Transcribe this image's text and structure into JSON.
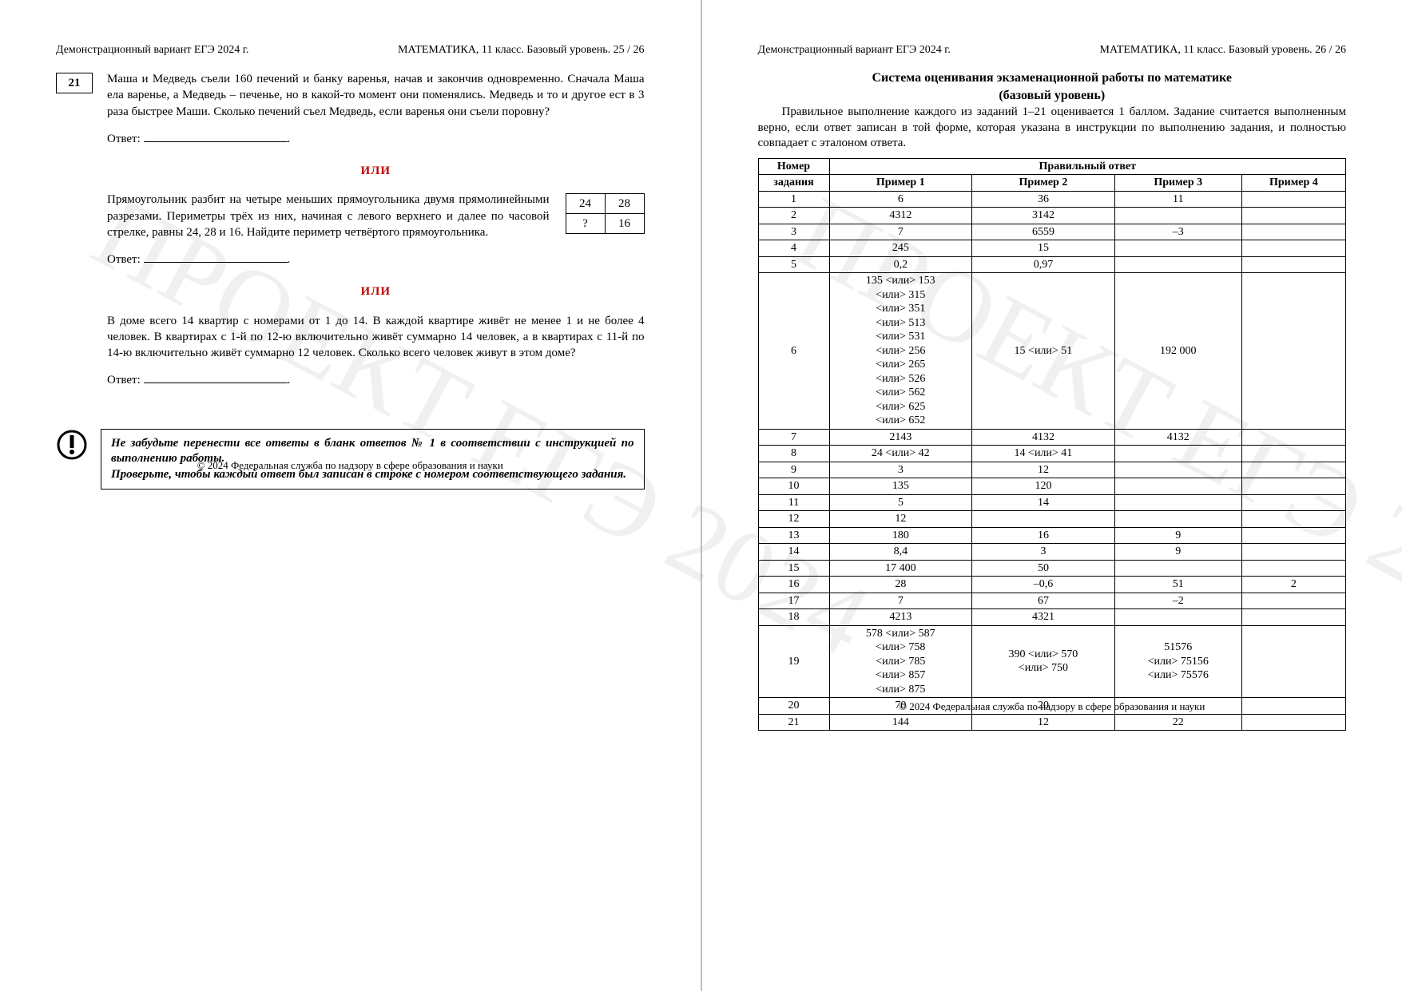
{
  "watermark_text": "ПРОЕКТ ЕГЭ 2024",
  "footer": "© 2024 Федеральная служба по надзору в сфере образования и науки",
  "left": {
    "head_left": "Демонстрационный вариант ЕГЭ 2024 г.",
    "head_right": "МАТЕМАТИКА, 11 класс. Базовый уровень. 25 / 26",
    "task_number": "21",
    "task1_text": "Маша и Медведь съели 160 печений и банку варенья, начав и закончив одновременно. Сначала Маша ела варенье, а Медведь – печенье, но в какой-то момент они поменялись. Медведь и то и другое ест в 3 раза быстрее Маши. Сколько печений съел Медведь, если варенья они съели поровну?",
    "answer_label": "Ответ:",
    "or_label": "ИЛИ",
    "task2_text": "Прямоугольник разбит на четыре меньших прямоугольника двумя прямолинейными разрезами. Периметры трёх из них, начиная с левого верхнего и далее по часовой стрелке, равны 24, 28 и 16. Найдите периметр четвёртого прямоугольника.",
    "mini_table": {
      "r1c1": "24",
      "r1c2": "28",
      "r2c1": "?",
      "r2c2": "16"
    },
    "task3_text": "В доме всего 14 квартир с номерами от 1 до 14. В каждой квартире живёт не менее 1 и не более 4 человек. В квартирах с 1-й по 12-ю включительно живёт суммарно 14 человек, а в квартирах с 11-й по 14-ю включительно живёт суммарно 12 человек. Сколько всего человек живут в этом доме?",
    "reminder_l1": "Не забудьте перенести все ответы в бланк ответов № 1 в соответствии с инструкцией по выполнению работы.",
    "reminder_l2": "Проверьте, чтобы каждый ответ был записан в строке с номером соответствующего задания."
  },
  "right": {
    "head_left": "Демонстрационный вариант ЕГЭ 2024 г.",
    "head_right": "МАТЕМАТИКА, 11 класс. Базовый уровень. 26 / 26",
    "title_l1": "Система оценивания экзаменационной работы по математике",
    "title_l2": "(базовый уровень)",
    "intro": "Правильное выполнение каждого из заданий 1–21 оценивается 1 баллом. Задание считается выполненным верно, если ответ записан в той форме, которая указана в инструкции по выполнению задания, и полностью совпадает с эталоном ответа.",
    "col_num_l1": "Номер",
    "col_num_l2": "задания",
    "col_answer": "Правильный ответ",
    "sub_cols": [
      "Пример 1",
      "Пример 2",
      "Пример 3",
      "Пример 4"
    ],
    "rows": [
      {
        "n": "1",
        "c": [
          "6",
          "36",
          "11",
          ""
        ]
      },
      {
        "n": "2",
        "c": [
          "4312",
          "3142",
          "",
          ""
        ]
      },
      {
        "n": "3",
        "c": [
          "7",
          "6559",
          "–3",
          ""
        ]
      },
      {
        "n": "4",
        "c": [
          "245",
          "15",
          "",
          ""
        ]
      },
      {
        "n": "5",
        "c": [
          "0,2",
          "0,97",
          "",
          ""
        ]
      },
      {
        "n": "6",
        "c": [
          "135 <или> 153\n<или> 315\n<или> 351\n<или> 513\n<или> 531\n<или> 256\n<или> 265\n<или> 526\n<или> 562\n<или> 625\n<или> 652",
          "15 <или> 51",
          "192 000",
          ""
        ]
      },
      {
        "n": "7",
        "c": [
          "2143",
          "4132",
          "4132",
          ""
        ]
      },
      {
        "n": "8",
        "c": [
          "24 <или> 42",
          "14 <или> 41",
          "",
          ""
        ]
      },
      {
        "n": "9",
        "c": [
          "3",
          "12",
          "",
          ""
        ]
      },
      {
        "n": "10",
        "c": [
          "135",
          "120",
          "",
          ""
        ]
      },
      {
        "n": "11",
        "c": [
          "5",
          "14",
          "",
          ""
        ]
      },
      {
        "n": "12",
        "c": [
          "12",
          "",
          "",
          ""
        ]
      },
      {
        "n": "13",
        "c": [
          "180",
          "16",
          "9",
          ""
        ]
      },
      {
        "n": "14",
        "c": [
          "8,4",
          "3",
          "9",
          ""
        ]
      },
      {
        "n": "15",
        "c": [
          "17 400",
          "50",
          "",
          ""
        ]
      },
      {
        "n": "16",
        "c": [
          "28",
          "–0,6",
          "51",
          "2"
        ]
      },
      {
        "n": "17",
        "c": [
          "7",
          "67",
          "–2",
          ""
        ]
      },
      {
        "n": "18",
        "c": [
          "4213",
          "4321",
          "",
          ""
        ]
      },
      {
        "n": "19",
        "c": [
          "578 <или> 587\n<или> 758\n<или> 785\n<или> 857\n<или> 875",
          "390 <или> 570\n<или> 750",
          "51576\n<или> 75156\n<или> 75576",
          ""
        ]
      },
      {
        "n": "20",
        "c": [
          "70",
          "20",
          "",
          ""
        ]
      },
      {
        "n": "21",
        "c": [
          "144",
          "12",
          "22",
          ""
        ]
      }
    ]
  }
}
